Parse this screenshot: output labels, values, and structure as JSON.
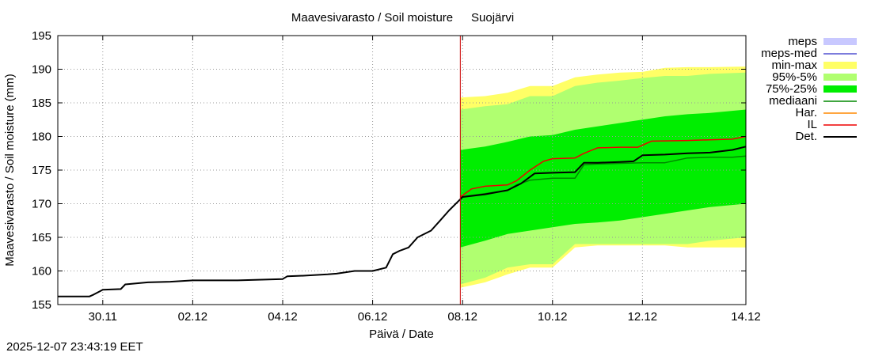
{
  "chart_data": {
    "type": "line",
    "title": "Maavesivarasto / Soil moisture",
    "station": "Suojärvi",
    "xlabel": "Päivä / Date",
    "ylabel": "Maavesivarasto / Soil moisture (mm)",
    "xlim": [
      0,
      15.3
    ],
    "ylim": [
      155,
      195
    ],
    "yticks": [
      155,
      160,
      165,
      170,
      175,
      180,
      185,
      190,
      195
    ],
    "xticks": [
      {
        "x": 1,
        "label": "30.11"
      },
      {
        "x": 3,
        "label": "02.12"
      },
      {
        "x": 5,
        "label": "04.12"
      },
      {
        "x": 7,
        "label": "06.12"
      },
      {
        "x": 9,
        "label": "08.12"
      },
      {
        "x": 11,
        "label": "10.12"
      },
      {
        "x": 13,
        "label": "12.12"
      },
      {
        "x": 15.3,
        "label": "14.12"
      }
    ],
    "grid": true,
    "forecast_start_x": 8.95,
    "legend_position": "right",
    "legend": [
      {
        "label": "meps",
        "style": "band",
        "color": "#c8c8ff"
      },
      {
        "label": "meps-med",
        "style": "line",
        "color": "#5050d0"
      },
      {
        "label": "min-max",
        "style": "band",
        "color": "#ffff66"
      },
      {
        "label": "95%-5%",
        "style": "band",
        "color": "#b0ff70"
      },
      {
        "label": "75%-25%",
        "style": "band",
        "color": "#00ee00"
      },
      {
        "label": "mediaani",
        "style": "line",
        "color": "#008800"
      },
      {
        "label": "Har.",
        "style": "line",
        "color": "#ff8800"
      },
      {
        "label": "IL",
        "style": "line",
        "color": "#ee0000"
      },
      {
        "label": "Det.",
        "style": "line",
        "color": "#000000"
      }
    ],
    "bands": [
      {
        "name": "min-max",
        "color": "#ffff66",
        "x": [
          8.95,
          9.5,
          10.0,
          10.5,
          11.0,
          11.5,
          12.0,
          12.5,
          13.0,
          13.5,
          14.0,
          14.5,
          15.3
        ],
        "lower": [
          157.5,
          158.3,
          159.5,
          160.5,
          160.5,
          163.5,
          163.8,
          163.8,
          163.8,
          163.8,
          163.5,
          163.5,
          163.5
        ],
        "upper": [
          185.8,
          186.0,
          186.5,
          187.5,
          187.5,
          188.8,
          189.2,
          189.5,
          189.6,
          190.2,
          190.3,
          190.3,
          190.4
        ]
      },
      {
        "name": "95%-5%",
        "color": "#b0ff70",
        "x": [
          8.95,
          9.5,
          10.0,
          10.5,
          11.0,
          11.5,
          12.0,
          12.5,
          13.0,
          13.5,
          14.0,
          14.5,
          15.3
        ],
        "lower": [
          158.0,
          159.0,
          160.5,
          161.0,
          161.0,
          164.0,
          164.0,
          164.0,
          164.0,
          164.0,
          164.0,
          164.5,
          165.0
        ],
        "upper": [
          184.0,
          184.5,
          184.8,
          186.0,
          186.0,
          187.5,
          188.0,
          188.3,
          188.7,
          189.0,
          189.0,
          189.3,
          189.5
        ]
      },
      {
        "name": "75%-25%",
        "color": "#00ee00",
        "x": [
          8.95,
          9.5,
          10.0,
          10.5,
          11.0,
          11.5,
          12.0,
          12.5,
          13.0,
          13.5,
          14.0,
          14.5,
          15.3
        ],
        "lower": [
          163.5,
          164.5,
          165.5,
          166.0,
          166.5,
          167.0,
          167.2,
          167.5,
          168.0,
          168.5,
          169.0,
          169.5,
          170.0
        ],
        "upper": [
          178.0,
          178.5,
          179.2,
          180.0,
          180.2,
          181.0,
          181.5,
          182.0,
          182.5,
          183.0,
          183.3,
          183.5,
          184.0
        ]
      }
    ],
    "series": [
      {
        "name": "mediaani",
        "color": "#008800",
        "x": [
          8.95,
          9.5,
          10.0,
          10.2,
          10.5,
          11.0,
          11.5,
          11.7,
          12.0,
          12.5,
          13.0,
          13.5,
          14.0,
          14.5,
          15.0,
          15.3
        ],
        "y": [
          171.0,
          171.5,
          172.0,
          172.8,
          173.5,
          173.8,
          173.8,
          175.8,
          175.9,
          176.0,
          176.1,
          176.1,
          176.8,
          176.9,
          176.9,
          177.1
        ]
      },
      {
        "name": "IL",
        "color": "#ee0000",
        "x": [
          8.95,
          9.2,
          9.5,
          10.0,
          10.2,
          10.5,
          10.8,
          11.0,
          11.5,
          11.7,
          12.0,
          12.5,
          12.9,
          13.2,
          14.0,
          14.5,
          15.0,
          15.3
        ],
        "y": [
          171.0,
          172.2,
          172.6,
          172.8,
          173.4,
          175.0,
          176.3,
          176.7,
          176.8,
          177.5,
          178.3,
          178.4,
          178.4,
          179.3,
          179.4,
          179.5,
          179.6,
          180.0
        ]
      },
      {
        "name": "Det.",
        "color": "#000000",
        "x": [
          0,
          0.7,
          0.8,
          1.0,
          1.4,
          1.5,
          2.0,
          2.5,
          3.0,
          4.0,
          5.0,
          5.1,
          5.5,
          6.0,
          6.2,
          6.6,
          7.0,
          7.3,
          7.45,
          7.6,
          7.8,
          8.0,
          8.3,
          8.5,
          8.7,
          9.0,
          9.5,
          10.0,
          10.3,
          10.6,
          11.0,
          11.5,
          11.7,
          12.0,
          12.5,
          12.8,
          13.0,
          13.5,
          14.0,
          14.5,
          15.0,
          15.3
        ],
        "y": [
          156.2,
          156.2,
          156.5,
          157.2,
          157.3,
          158.0,
          158.3,
          158.4,
          158.6,
          158.6,
          158.8,
          159.2,
          159.3,
          159.5,
          159.6,
          160.0,
          160.0,
          160.5,
          162.5,
          163.0,
          163.5,
          165.0,
          166.0,
          167.5,
          169.0,
          171.0,
          171.4,
          172.0,
          173.0,
          174.5,
          174.6,
          174.7,
          176.1,
          176.1,
          176.2,
          176.3,
          177.2,
          177.3,
          177.5,
          177.6,
          178.0,
          178.5
        ]
      }
    ]
  },
  "timestamp": "2025-12-07 23:43:19 EET"
}
